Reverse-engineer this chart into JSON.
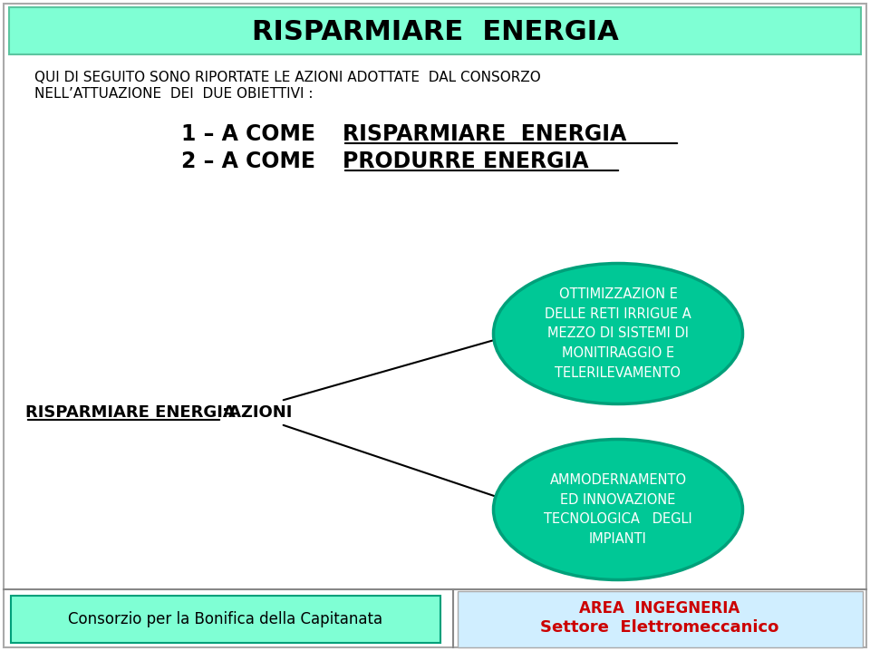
{
  "title": "RISPARMIARE  ENERGIA",
  "title_box_color": "#7fffd4",
  "title_box_border": "#5cc5a0",
  "bg_color": "#ffffff",
  "subtitle_line1": "QUI DI SEGUITO SONO RIPORTATE LE AZIONI ADOTTATE  DAL CONSORZO",
  "subtitle_line2": "NELL’ATTUAZIONE  DEI  DUE OBIETTIVI :",
  "obj_line1_prefix": "1 – A COME ",
  "obj_line1_underline": "RISPARMIARE  ENERGIA",
  "obj_line2_prefix": "2 – A COME ",
  "obj_line2_underline": "PRODURRE ENERGIA",
  "left_label_prefix": "RISPARMIARE ENERGIA",
  "left_label_suffix": ":AZIONI",
  "ellipse1_text": "OTTIMIZZAZION E\nDELLE RETI IRRIGUE A\nMEZZO DI SISTEMI DI\nMONITIRAGGIO E\nTELERILEVAMENTO",
  "ellipse2_text": "AMMODERNAMENTO\nED INNOVAZIONE\nTECNOLOGICA   DEGLI\nIMPIANTI",
  "ellipse_color": "#00c896",
  "ellipse_edge_color": "#00a07a",
  "ellipse_text_color": "#ffffff",
  "footer_left_text": "Consorzio per la Bonifica della Capitanata",
  "footer_left_bg": "#7fffd4",
  "footer_right_line1": "AREA  INGEGNERIA",
  "footer_right_line2": "Settore  Elettromeccanico",
  "footer_right_bg": "#d0eeff",
  "footer_right_color1": "#cc0000",
  "footer_right_color2": "#cc0000",
  "main_border_color": "#aaaaaa",
  "footer_border_color": "#888888"
}
